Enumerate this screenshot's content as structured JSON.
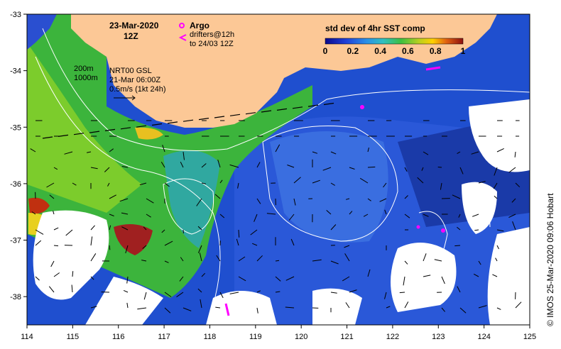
{
  "map": {
    "region_bounds": {
      "lon": [
        114,
        125
      ],
      "lat": [
        -38.5,
        -33
      ]
    },
    "x_ticks": [
      "114",
      "115",
      "116",
      "117",
      "118",
      "119",
      "120",
      "121",
      "122",
      "123",
      "124",
      "125"
    ],
    "y_ticks": [
      "-33",
      "-34",
      "-35",
      "-36",
      "-37",
      "-38"
    ],
    "date_title": "23-Mar-2020",
    "time_title": "12Z",
    "legend_argo": "Argo",
    "legend_drifters_line1": "drifters@12h",
    "legend_drifters_line2": "to 24/03 12Z",
    "contour_200": "200m",
    "contour_1000": "1000m",
    "model_label": "NRT00 GSL",
    "model_time": "21-Mar 06:00Z",
    "vector_scale": "0.5m/s (1kt 24h)",
    "colorbar_title": "std dev of 4hr SST comp",
    "colorbar_ticks": [
      "0",
      "0.2",
      "0.4",
      "0.6",
      "0.8",
      "1"
    ],
    "credit": "© IMOS 25-Mar-2020 09:06 Hobart",
    "colors": {
      "land": "#fcc896",
      "argo": "#ff00ff",
      "frame": "#000000"
    }
  }
}
